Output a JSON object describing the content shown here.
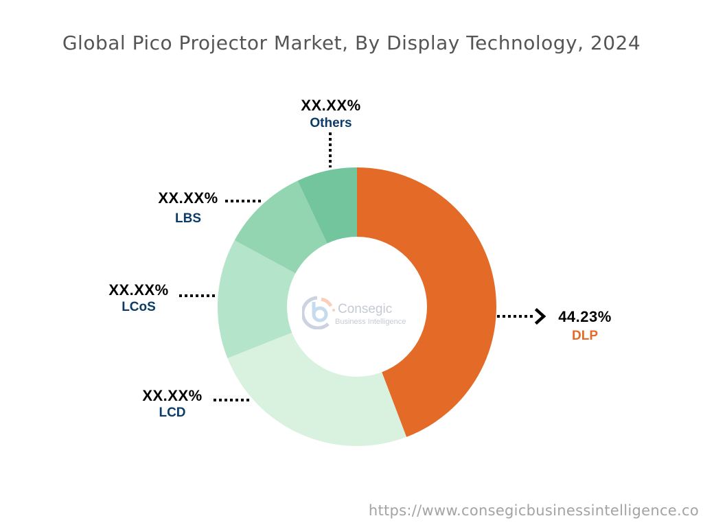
{
  "title": "Global Pico Projector Market, By Display Technology, 2024",
  "footer": "https://www.consegicbusinessintelligence.co",
  "logo": {
    "name": "Consegic",
    "tagline": "Business Intelligence",
    "icon": "consegic-logo-icon"
  },
  "colors": {
    "DLP": "#E46A27",
    "LCD": "#D9F2DF",
    "LCoS": "#B4E4C9",
    "LBS": "#93D4B1",
    "Others": "#73C59D",
    "label_dark": "#0B3B66",
    "label_accent": "#E46A27"
  },
  "labels": {
    "dlp": {
      "value": "44.23%",
      "name": "DLP"
    },
    "lcd": {
      "value": "XX.XX%",
      "name": "LCD"
    },
    "lcos": {
      "value": "XX.XX%",
      "name": "LCoS"
    },
    "lbs": {
      "value": "XX.XX%",
      "name": "LBS"
    },
    "others": {
      "value": "XX.XX%",
      "name": "Others"
    }
  },
  "chart_data": {
    "type": "pie",
    "subtype": "donut",
    "title": "Global Pico Projector Market, By Display Technology, 2024",
    "categories": [
      "DLP",
      "LCD",
      "LCoS",
      "LBS",
      "Others"
    ],
    "values": [
      44.23,
      24.75,
      13.95,
      10.08,
      7.0
    ],
    "display_labels": [
      "44.23%",
      "XX.XX%",
      "XX.XX%",
      "XX.XX%",
      "XX.XX%"
    ],
    "colors": [
      "#E46A27",
      "#D9F2DF",
      "#B4E4C9",
      "#93D4B1",
      "#73C59D"
    ],
    "start_angle_deg": 0,
    "direction": "clockwise",
    "center": [
      520,
      447
    ],
    "outer_radius": 203,
    "inner_radius": 102,
    "legend": "none (direct labels with dotted leaders)",
    "note": "Only DLP value shown explicitly; others masked as XX.XX% (values estimated from slice angles)"
  }
}
